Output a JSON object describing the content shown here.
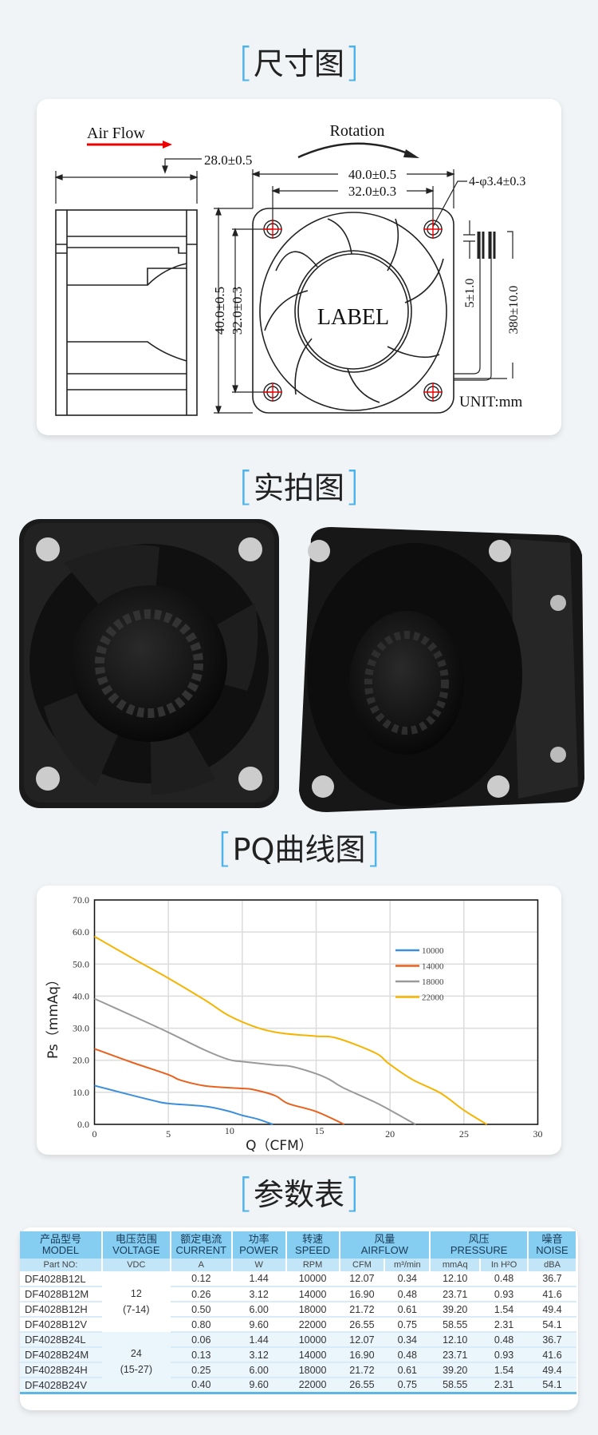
{
  "sections": {
    "dimension_title": "尺寸图",
    "photo_title": "实拍图",
    "pq_title": "PQ曲线图",
    "spec_title": "参数表"
  },
  "drawing": {
    "air_flow": "Air Flow",
    "rotation": "Rotation",
    "thickness": "28.0±0.5",
    "width_outer": "40.0±0.5",
    "width_holes": "32.0±0.3",
    "hole_spec": "4-φ3.4±0.3",
    "height_outer": "40.0±0.5",
    "height_holes": "32.0±0.3",
    "strip_length": "5±1.0",
    "lead_length": "380±10.0",
    "label": "LABEL",
    "unit": "UNIT:mm"
  },
  "chart_data": {
    "type": "line",
    "xlabel": "Q（CFM）",
    "ylabel": "Ps（mmAq）",
    "xlim": [
      0,
      30
    ],
    "ylim": [
      0,
      70
    ],
    "x_ticks": [
      "0",
      "5",
      "10",
      "15",
      "20",
      "25",
      "30"
    ],
    "y_ticks": [
      "0.0",
      "10.0",
      "20.0",
      "30.0",
      "40.0",
      "50.0",
      "60.0",
      "70.0"
    ],
    "grid": true,
    "legend_position": "right",
    "series": [
      {
        "name": "10000",
        "color": "#3d8fdc",
        "points": [
          [
            0,
            12.1
          ],
          [
            2,
            9.7
          ],
          [
            4,
            7.4
          ],
          [
            5,
            6.5
          ],
          [
            7.5,
            5.6
          ],
          [
            9,
            4.2
          ],
          [
            10,
            2.8
          ],
          [
            11,
            1.7
          ],
          [
            12.07,
            0
          ]
        ]
      },
      {
        "name": "14000",
        "color": "#e8621e",
        "points": [
          [
            0,
            23.6
          ],
          [
            2.5,
            19.4
          ],
          [
            5,
            15.5
          ],
          [
            5.8,
            13.8
          ],
          [
            7.5,
            12
          ],
          [
            10,
            11.2
          ],
          [
            10.7,
            10.9
          ],
          [
            12.2,
            9
          ],
          [
            13.1,
            6.5
          ],
          [
            15,
            4
          ],
          [
            16.9,
            0
          ]
        ]
      },
      {
        "name": "18000",
        "color": "#9a9a9a",
        "points": [
          [
            0,
            39.2
          ],
          [
            2.5,
            34
          ],
          [
            5,
            28.7
          ],
          [
            7.5,
            23.1
          ],
          [
            9.1,
            20.2
          ],
          [
            10,
            19.6
          ],
          [
            12.2,
            18.5
          ],
          [
            13.3,
            18.1
          ],
          [
            15,
            15.8
          ],
          [
            15.9,
            14
          ],
          [
            16.8,
            11.5
          ],
          [
            18.9,
            7.1
          ],
          [
            19.9,
            4.7
          ],
          [
            21.72,
            0
          ]
        ]
      },
      {
        "name": "22000",
        "color": "#f6b400",
        "points": [
          [
            0,
            58.6
          ],
          [
            2.5,
            52
          ],
          [
            5,
            45.6
          ],
          [
            7.5,
            38.7
          ],
          [
            9.1,
            33.9
          ],
          [
            11,
            30.2
          ],
          [
            12.6,
            28.5
          ],
          [
            15,
            27.5
          ],
          [
            16.4,
            26.9
          ],
          [
            19,
            22.3
          ],
          [
            19.9,
            19
          ],
          [
            21.5,
            14
          ],
          [
            23.4,
            9.8
          ],
          [
            25,
            4.4
          ],
          [
            26.55,
            0
          ]
        ]
      }
    ]
  },
  "spec_table": {
    "headers": [
      {
        "cn": "产品型号",
        "en": "MODEL"
      },
      {
        "cn": "电压范围",
        "en": "VOLTAGE"
      },
      {
        "cn": "额定电流",
        "en": "CURRENT"
      },
      {
        "cn": "功率",
        "en": "POWER"
      },
      {
        "cn": "转速",
        "en": "SPEED"
      },
      {
        "cn": "风量",
        "en": "AIRFLOW"
      },
      {
        "cn": "风压",
        "en": "PRESSURE"
      },
      {
        "cn": "噪音",
        "en": "NOISE"
      }
    ],
    "units": [
      "Part NO:",
      "VDC",
      "A",
      "W",
      "RPM",
      "CFM",
      "m³/min",
      "mmAq",
      "In H²O",
      "dBA"
    ],
    "voltage_groups": [
      {
        "nominal": "12",
        "range": "(7-14)"
      },
      {
        "nominal": "24",
        "range": "(15-27)"
      }
    ],
    "rows": [
      [
        "DF4028B12L",
        "0.12",
        "1.44",
        "10000",
        "12.07",
        "0.34",
        "12.10",
        "0.48",
        "36.7"
      ],
      [
        "DF4028B12M",
        "0.26",
        "3.12",
        "14000",
        "16.90",
        "0.48",
        "23.71",
        "0.93",
        "41.6"
      ],
      [
        "DF4028B12H",
        "0.50",
        "6.00",
        "18000",
        "21.72",
        "0.61",
        "39.20",
        "1.54",
        "49.4"
      ],
      [
        "DF4028B12V",
        "0.80",
        "9.60",
        "22000",
        "26.55",
        "0.75",
        "58.55",
        "2.31",
        "54.1"
      ],
      [
        "DF4028B24L",
        "0.06",
        "1.44",
        "10000",
        "12.07",
        "0.34",
        "12.10",
        "0.48",
        "36.7"
      ],
      [
        "DF4028B24M",
        "0.13",
        "3.12",
        "14000",
        "16.90",
        "0.48",
        "23.71",
        "0.93",
        "41.6"
      ],
      [
        "DF4028B24H",
        "0.25",
        "6.00",
        "18000",
        "21.72",
        "0.61",
        "39.20",
        "1.54",
        "49.4"
      ],
      [
        "DF4028B24V",
        "0.40",
        "9.60",
        "22000",
        "26.55",
        "0.75",
        "58.55",
        "2.31",
        "54.1"
      ]
    ]
  }
}
